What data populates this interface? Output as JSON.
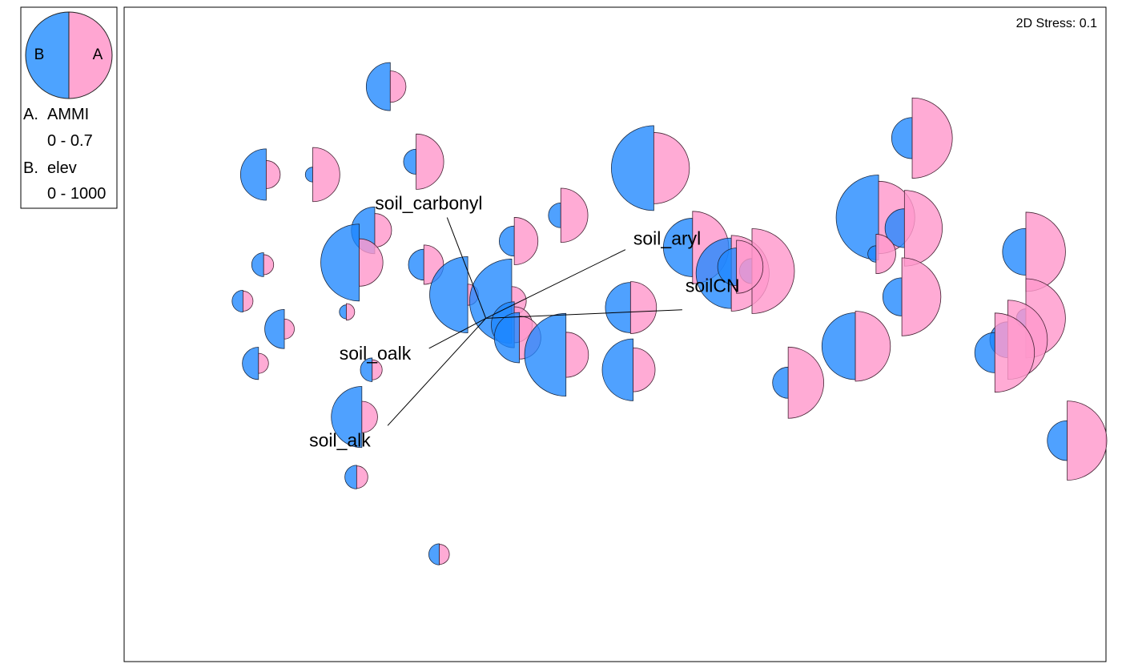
{
  "chart_data": {
    "type": "scatter",
    "stress_label": "2D Stress: 0.1",
    "legend": {
      "left_half_letter": "B",
      "right_half_letter": "A",
      "entries": [
        {
          "letter": "A.",
          "name": "AMMI",
          "range": "0 - 0.7"
        },
        {
          "letter": "B.",
          "name": "elev",
          "range": "0 - 1000"
        }
      ],
      "placement": "top-left, outside plot"
    },
    "colors": {
      "A": "#ff99cc",
      "B": "#1e87ff"
    },
    "x_range": [
      -1.4,
      2.4
    ],
    "y_range": [
      -1.6,
      1.45
    ],
    "vector_origin": [
      0.0,
      0.0
    ],
    "vectors": [
      {
        "name": "soil_carbonyl",
        "x": -0.15,
        "y": 0.47
      },
      {
        "name": "soil_aryl",
        "x": 0.54,
        "y": 0.32
      },
      {
        "name": "soilCN",
        "x": 0.76,
        "y": 0.04
      },
      {
        "name": "soil_oalk",
        "x": -0.22,
        "y": -0.14
      },
      {
        "name": "soil_alk",
        "x": -0.38,
        "y": -0.5
      }
    ],
    "points": [
      {
        "x": -0.37,
        "y": 1.08,
        "A": 0.22,
        "B": 488
      },
      {
        "x": -0.27,
        "y": 0.73,
        "A": 0.43,
        "B": 170
      },
      {
        "x": -0.85,
        "y": 0.67,
        "A": 0.19,
        "B": 535
      },
      {
        "x": -0.67,
        "y": 0.67,
        "A": 0.42,
        "B": 28
      },
      {
        "x": 0.29,
        "y": 0.48,
        "A": 0.42,
        "B": 165
      },
      {
        "x": 0.65,
        "y": 0.7,
        "A": 0.57,
        "B": 1000
      },
      {
        "x": 1.65,
        "y": 0.84,
        "A": 0.65,
        "B": 392
      },
      {
        "x": -0.43,
        "y": 0.41,
        "A": 0.24,
        "B": 470
      },
      {
        "x": 0.11,
        "y": 0.36,
        "A": 0.36,
        "B": 240
      },
      {
        "x": -0.49,
        "y": 0.26,
        "A": 0.36,
        "B": 890
      },
      {
        "x": -0.86,
        "y": 0.25,
        "A": 0.12,
        "B": 154
      },
      {
        "x": -0.24,
        "y": 0.25,
        "A": 0.29,
        "B": 250
      },
      {
        "x": 0.8,
        "y": 0.33,
        "A": 0.58,
        "B": 632
      },
      {
        "x": 0.95,
        "y": 0.21,
        "A": 0.61,
        "B": 800
      },
      {
        "x": 1.03,
        "y": 0.22,
        "A": 0.69,
        "B": 170
      },
      {
        "x": 0.97,
        "y": 0.24,
        "A": 0.41,
        "B": 345
      },
      {
        "x": 1.52,
        "y": 0.47,
        "A": 0.58,
        "B": 1000
      },
      {
        "x": 1.62,
        "y": 0.42,
        "A": 0.61,
        "B": 360
      },
      {
        "x": 1.51,
        "y": 0.3,
        "A": 0.29,
        "B": 50
      },
      {
        "x": 2.09,
        "y": 0.31,
        "A": 0.64,
        "B": 470
      },
      {
        "x": -0.07,
        "y": 0.11,
        "A": 0.13,
        "B": 880
      },
      {
        "x": 0.1,
        "y": 0.08,
        "A": 0.2,
        "B": 990
      },
      {
        "x": 1.61,
        "y": 0.1,
        "A": 0.63,
        "B": 350
      },
      {
        "x": -0.94,
        "y": 0.08,
        "A": 0.12,
        "B": 125
      },
      {
        "x": -0.54,
        "y": 0.03,
        "A": 0.09,
        "B": 15
      },
      {
        "x": 0.56,
        "y": 0.05,
        "A": 0.4,
        "B": 520
      },
      {
        "x": 0.11,
        "y": -0.03,
        "A": 0.26,
        "B": 460
      },
      {
        "x": -0.78,
        "y": -0.05,
        "A": 0.12,
        "B": 365
      },
      {
        "x": 2.09,
        "y": 0.0,
        "A": 0.64,
        "B": 85
      },
      {
        "x": 0.13,
        "y": -0.09,
        "A": 0.32,
        "B": 520
      },
      {
        "x": 2.02,
        "y": -0.1,
        "A": 0.64,
        "B": 320
      },
      {
        "x": 1.43,
        "y": -0.13,
        "A": 0.56,
        "B": 750
      },
      {
        "x": 1.97,
        "y": -0.16,
        "A": 0.64,
        "B": 380
      },
      {
        "x": 0.31,
        "y": -0.17,
        "A": 0.34,
        "B": 970
      },
      {
        "x": 0.57,
        "y": -0.24,
        "A": 0.33,
        "B": 680
      },
      {
        "x": -0.88,
        "y": -0.21,
        "A": 0.12,
        "B": 270
      },
      {
        "x": -0.44,
        "y": -0.24,
        "A": 0.12,
        "B": 150
      },
      {
        "x": 1.17,
        "y": -0.3,
        "A": 0.57,
        "B": 255
      },
      {
        "x": -0.48,
        "y": -0.46,
        "A": 0.22,
        "B": 670
      },
      {
        "x": 2.25,
        "y": -0.57,
        "A": 0.64,
        "B": 375
      },
      {
        "x": -0.5,
        "y": -0.74,
        "A": 0.14,
        "B": 150
      },
      {
        "x": -0.18,
        "y": -1.1,
        "A": 0.12,
        "B": 115
      }
    ]
  }
}
